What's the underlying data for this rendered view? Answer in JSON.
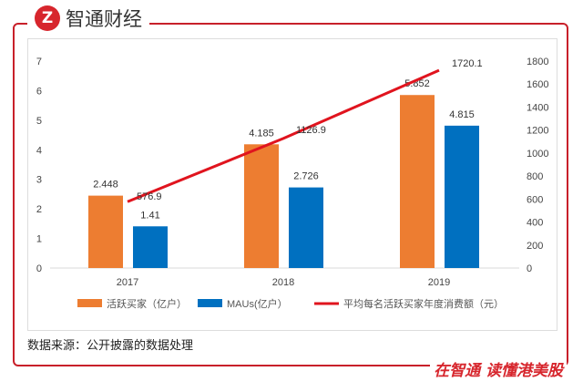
{
  "brand": {
    "logo_text": "智通财经",
    "slogan": "在智通 读懂港美股"
  },
  "source": "数据来源：公开披露的数据处理",
  "colors": {
    "orange": "#ed7d31",
    "blue": "#0070c0",
    "red": "#e0141e",
    "frame": "#c8202a"
  },
  "chart_data": {
    "type": "bar+line",
    "categories": [
      "2017",
      "2018",
      "2019"
    ],
    "series": [
      {
        "name": "活跃买家（亿户）",
        "type": "bar",
        "axis": "left",
        "values": [
          2.448,
          4.185,
          5.852
        ],
        "labels": [
          "2.448",
          "4.185",
          "5.852"
        ]
      },
      {
        "name": "MAUs(亿户）",
        "type": "bar",
        "axis": "left",
        "values": [
          1.41,
          2.726,
          4.815
        ],
        "labels": [
          "1.41",
          "2.726",
          "4.815"
        ]
      },
      {
        "name": "平均每名活跃买家年度消费额（元）",
        "type": "line",
        "axis": "right",
        "values": [
          576.9,
          1126.9,
          1720.1
        ],
        "labels": [
          "576.9",
          "1126.9",
          "1720.1"
        ]
      }
    ],
    "left_axis": {
      "ylim": [
        0,
        7
      ],
      "ticks": [
        "0",
        "1",
        "2",
        "3",
        "4",
        "5",
        "6",
        "7"
      ]
    },
    "right_axis": {
      "ylim": [
        0,
        1800
      ],
      "ticks": [
        "0",
        "200",
        "400",
        "600",
        "800",
        "1000",
        "1200",
        "1400",
        "1600",
        "1800"
      ]
    },
    "grid": false,
    "legend": "bottom"
  }
}
